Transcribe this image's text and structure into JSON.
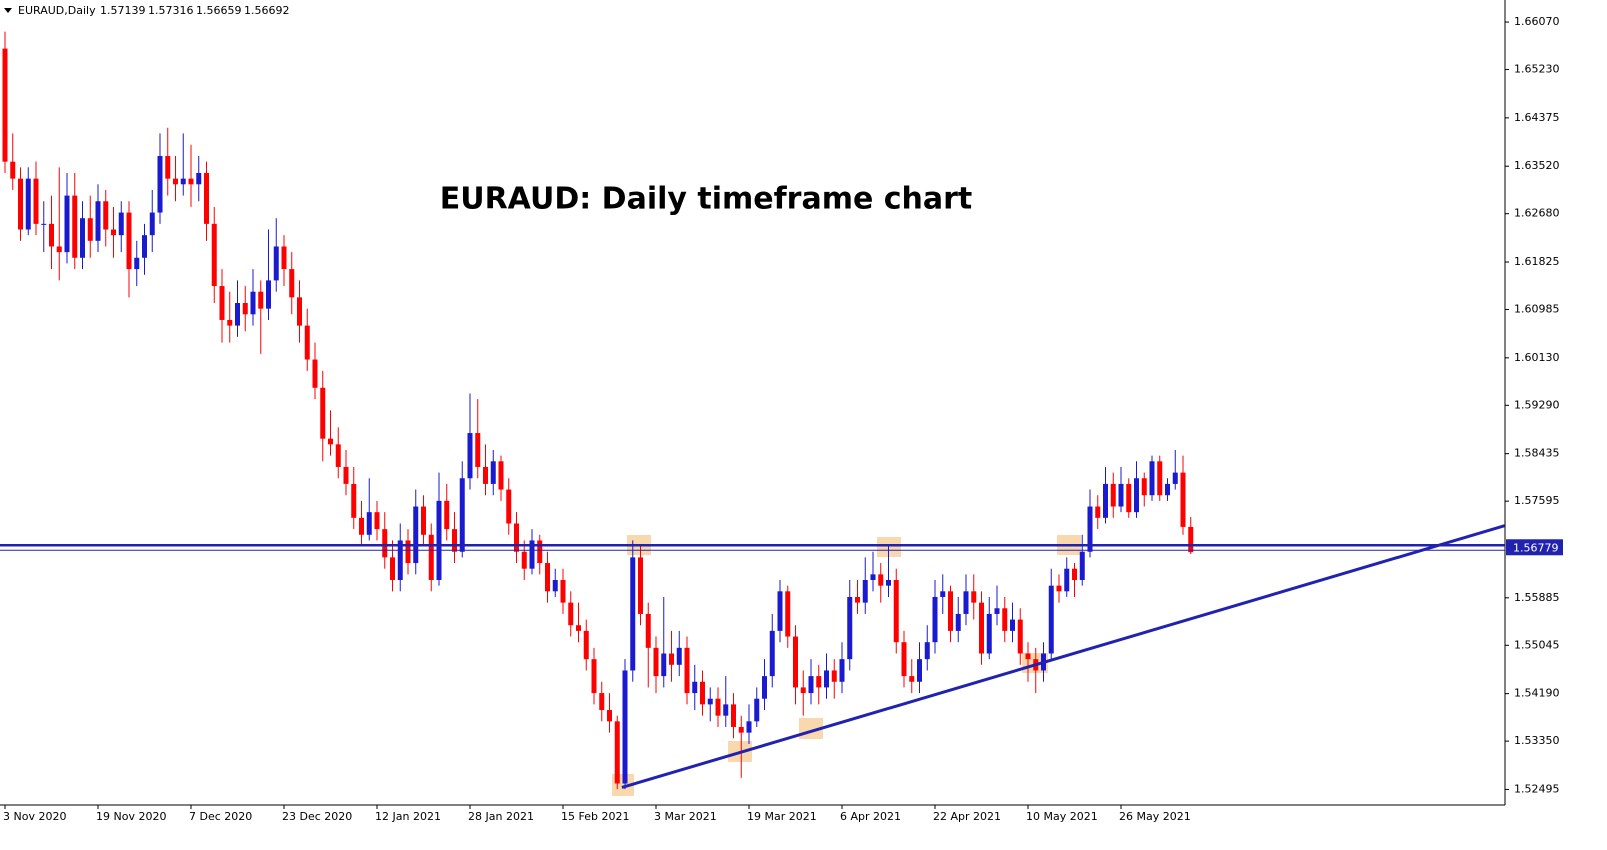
{
  "chart_data": {
    "type": "candlestick",
    "symbol": "EURAUD,Daily",
    "title": "EURAUD: Daily timeframe chart",
    "up_color": "#1a1ad0",
    "down_color": "#ff0000",
    "line_color": "#2222b0",
    "level": 1.56779,
    "trendline": [
      [
        79.6,
        1.5253
      ],
      [
        193.5,
        1.5716
      ]
    ],
    "ylim": [
      1.5222,
      1.6646
    ],
    "yticks": [
      {
        "value": 1.6607,
        "label": "1.66070"
      },
      {
        "value": 1.6523,
        "label": "1.65230"
      },
      1.64375,
      {
        "value": 1.6352,
        "label": "1.63520"
      },
      {
        "value": 1.6268,
        "label": "1.62680"
      },
      1.61825,
      1.60985,
      {
        "value": 1.6013,
        "label": "1.60130"
      },
      {
        "value": 1.5929,
        "label": "1.59290"
      },
      1.58435,
      1.57595,
      1.55885,
      1.55045,
      {
        "value": 1.5419,
        "label": "1.54190"
      },
      {
        "value": 1.5335,
        "label": "1.53350"
      },
      1.52495
    ],
    "categories": [
      "3 Nov 2020",
      null,
      null,
      null,
      null,
      null,
      null,
      null,
      null,
      null,
      null,
      null,
      "19 Nov 2020",
      null,
      null,
      null,
      null,
      null,
      null,
      null,
      null,
      null,
      null,
      null,
      "7 Dec 2020",
      null,
      null,
      null,
      null,
      null,
      null,
      null,
      null,
      null,
      null,
      null,
      "23 Dec 2020",
      null,
      null,
      null,
      null,
      null,
      null,
      null,
      null,
      null,
      null,
      null,
      "12 Jan 2021",
      null,
      null,
      null,
      null,
      null,
      null,
      null,
      null,
      null,
      null,
      null,
      "28 Jan 2021",
      null,
      null,
      null,
      null,
      null,
      null,
      null,
      null,
      null,
      null,
      null,
      "15 Feb 2021",
      null,
      null,
      null,
      null,
      null,
      null,
      null,
      null,
      null,
      null,
      null,
      "3 Mar 2021",
      null,
      null,
      null,
      null,
      null,
      null,
      null,
      null,
      null,
      null,
      null,
      "19 Mar 2021",
      null,
      null,
      null,
      null,
      null,
      null,
      null,
      null,
      null,
      null,
      null,
      "6 Apr 2021",
      null,
      null,
      null,
      null,
      null,
      null,
      null,
      null,
      null,
      null,
      null,
      "22 Apr 2021",
      null,
      null,
      null,
      null,
      null,
      null,
      null,
      null,
      null,
      null,
      null,
      "10 May 2021",
      null,
      null,
      null,
      null,
      null,
      null,
      null,
      null,
      null,
      null,
      null,
      "26 May 2021",
      null,
      null,
      null,
      null,
      null,
      null,
      null,
      null,
      null
    ],
    "ohlc": [
      [
        1.656,
        1.659,
        1.634,
        1.636
      ],
      [
        1.636,
        1.641,
        1.631,
        1.633
      ],
      [
        1.633,
        1.635,
        1.622,
        1.624
      ],
      [
        1.624,
        1.635,
        1.623,
        1.633
      ],
      [
        1.633,
        1.636,
        1.623,
        1.625
      ],
      [
        1.625,
        1.629,
        1.62,
        1.625
      ],
      [
        1.625,
        1.63,
        1.617,
        1.621
      ],
      [
        1.621,
        1.635,
        1.615,
        1.62
      ],
      [
        1.62,
        1.634,
        1.618,
        1.63
      ],
      [
        1.63,
        1.634,
        1.617,
        1.619
      ],
      [
        1.619,
        1.629,
        1.617,
        1.626
      ],
      [
        1.626,
        1.63,
        1.619,
        1.622
      ],
      [
        1.622,
        1.632,
        1.62,
        1.629
      ],
      [
        1.629,
        1.631,
        1.621,
        1.624
      ],
      [
        1.624,
        1.628,
        1.619,
        1.623
      ],
      [
        1.623,
        1.629,
        1.62,
        1.627
      ],
      [
        1.627,
        1.629,
        1.612,
        1.617
      ],
      [
        1.617,
        1.622,
        1.614,
        1.619
      ],
      [
        1.619,
        1.625,
        1.616,
        1.623
      ],
      [
        1.623,
        1.631,
        1.62,
        1.627
      ],
      [
        1.627,
        1.641,
        1.625,
        1.637
      ],
      [
        1.637,
        1.642,
        1.63,
        1.633
      ],
      [
        1.633,
        1.637,
        1.629,
        1.632
      ],
      [
        1.632,
        1.641,
        1.63,
        1.633
      ],
      [
        1.633,
        1.639,
        1.628,
        1.632
      ],
      [
        1.632,
        1.637,
        1.629,
        1.634
      ],
      [
        1.634,
        1.636,
        1.622,
        1.625
      ],
      [
        1.625,
        1.628,
        1.611,
        1.614
      ],
      [
        1.614,
        1.617,
        1.604,
        1.608
      ],
      [
        1.608,
        1.613,
        1.604,
        1.607
      ],
      [
        1.607,
        1.615,
        1.605,
        1.611
      ],
      [
        1.611,
        1.614,
        1.606,
        1.609
      ],
      [
        1.609,
        1.617,
        1.607,
        1.613
      ],
      [
        1.613,
        1.615,
        1.602,
        1.61
      ],
      [
        1.61,
        1.624,
        1.608,
        1.615
      ],
      [
        1.615,
        1.626,
        1.613,
        1.621
      ],
      [
        1.621,
        1.623,
        1.614,
        1.617
      ],
      [
        1.617,
        1.62,
        1.609,
        1.612
      ],
      [
        1.612,
        1.615,
        1.604,
        1.607
      ],
      [
        1.607,
        1.61,
        1.599,
        1.601
      ],
      [
        1.601,
        1.604,
        1.594,
        1.596
      ],
      [
        1.596,
        1.599,
        1.583,
        1.587
      ],
      [
        1.587,
        1.592,
        1.584,
        1.586
      ],
      [
        1.586,
        1.589,
        1.58,
        1.582
      ],
      [
        1.582,
        1.585,
        1.577,
        1.579
      ],
      [
        1.579,
        1.582,
        1.571,
        1.573
      ],
      [
        1.573,
        1.576,
        1.568,
        1.57
      ],
      [
        1.57,
        1.58,
        1.569,
        1.574
      ],
      [
        1.574,
        1.576,
        1.569,
        1.571
      ],
      [
        1.571,
        1.574,
        1.564,
        1.566
      ],
      [
        1.566,
        1.569,
        1.56,
        1.562
      ],
      [
        1.562,
        1.572,
        1.56,
        1.569
      ],
      [
        1.569,
        1.571,
        1.563,
        1.565
      ],
      [
        1.565,
        1.578,
        1.563,
        1.575
      ],
      [
        1.575,
        1.577,
        1.568,
        1.57
      ],
      [
        1.57,
        1.572,
        1.56,
        1.562
      ],
      [
        1.562,
        1.581,
        1.561,
        1.576
      ],
      [
        1.576,
        1.579,
        1.569,
        1.571
      ],
      [
        1.571,
        1.574,
        1.565,
        1.567
      ],
      [
        1.567,
        1.583,
        1.566,
        1.58
      ],
      [
        1.58,
        1.595,
        1.578,
        1.588
      ],
      [
        1.588,
        1.594,
        1.58,
        1.582
      ],
      [
        1.582,
        1.586,
        1.577,
        1.579
      ],
      [
        1.579,
        1.585,
        1.577,
        1.583
      ],
      [
        1.583,
        1.584,
        1.576,
        1.578
      ],
      [
        1.578,
        1.58,
        1.57,
        1.572
      ],
      [
        1.572,
        1.574,
        1.565,
        1.567
      ],
      [
        1.567,
        1.569,
        1.562,
        1.564
      ],
      [
        1.564,
        1.571,
        1.563,
        1.569
      ],
      [
        1.569,
        1.57,
        1.563,
        1.565
      ],
      [
        1.565,
        1.567,
        1.558,
        1.56
      ],
      [
        1.56,
        1.564,
        1.559,
        1.562
      ],
      [
        1.562,
        1.564,
        1.556,
        1.558
      ],
      [
        1.558,
        1.56,
        1.552,
        1.554
      ],
      [
        1.554,
        1.558,
        1.551,
        1.553
      ],
      [
        1.553,
        1.555,
        1.546,
        1.548
      ],
      [
        1.548,
        1.55,
        1.54,
        1.542
      ],
      [
        1.542,
        1.544,
        1.537,
        1.539
      ],
      [
        1.539,
        1.542,
        1.535,
        1.537
      ],
      [
        1.537,
        1.538,
        1.525,
        1.526
      ],
      [
        1.526,
        1.548,
        1.525,
        1.546
      ],
      [
        1.546,
        1.569,
        1.544,
        1.566
      ],
      [
        1.566,
        1.568,
        1.554,
        1.556
      ],
      [
        1.556,
        1.558,
        1.543,
        1.55
      ],
      [
        1.55,
        1.552,
        1.542,
        1.545
      ],
      [
        1.545,
        1.559,
        1.543,
        1.549
      ],
      [
        1.549,
        1.553,
        1.544,
        1.547
      ],
      [
        1.547,
        1.553,
        1.545,
        1.55
      ],
      [
        1.55,
        1.552,
        1.54,
        1.542
      ],
      [
        1.542,
        1.547,
        1.539,
        1.544
      ],
      [
        1.544,
        1.546,
        1.538,
        1.54
      ],
      [
        1.54,
        1.543,
        1.537,
        1.541
      ],
      [
        1.541,
        1.543,
        1.536,
        1.538
      ],
      [
        1.538,
        1.545,
        1.536,
        1.54
      ],
      [
        1.54,
        1.542,
        1.534,
        1.536
      ],
      [
        1.536,
        1.538,
        1.527,
        1.535
      ],
      [
        1.535,
        1.54,
        1.533,
        1.537
      ],
      [
        1.537,
        1.543,
        1.536,
        1.541
      ],
      [
        1.541,
        1.548,
        1.539,
        1.545
      ],
      [
        1.545,
        1.556,
        1.543,
        1.553
      ],
      [
        1.553,
        1.562,
        1.551,
        1.56
      ],
      [
        1.56,
        1.561,
        1.55,
        1.552
      ],
      [
        1.552,
        1.554,
        1.54,
        1.543
      ],
      [
        1.543,
        1.546,
        1.538,
        1.542
      ],
      [
        1.542,
        1.548,
        1.54,
        1.545
      ],
      [
        1.545,
        1.547,
        1.54,
        1.543
      ],
      [
        1.543,
        1.549,
        1.541,
        1.546
      ],
      [
        1.546,
        1.548,
        1.541,
        1.544
      ],
      [
        1.544,
        1.551,
        1.542,
        1.548
      ],
      [
        1.548,
        1.562,
        1.546,
        1.559
      ],
      [
        1.559,
        1.562,
        1.556,
        1.558
      ],
      [
        1.558,
        1.566,
        1.556,
        1.562
      ],
      [
        1.562,
        1.567,
        1.56,
        1.563
      ],
      [
        1.563,
        1.565,
        1.558,
        1.561
      ],
      [
        1.561,
        1.568,
        1.559,
        1.562
      ],
      [
        1.562,
        1.564,
        1.549,
        1.551
      ],
      [
        1.551,
        1.553,
        1.543,
        1.545
      ],
      [
        1.545,
        1.548,
        1.542,
        1.544
      ],
      [
        1.544,
        1.551,
        1.542,
        1.548
      ],
      [
        1.548,
        1.554,
        1.546,
        1.551
      ],
      [
        1.551,
        1.562,
        1.549,
        1.559
      ],
      [
        1.559,
        1.563,
        1.556,
        1.56
      ],
      [
        1.56,
        1.561,
        1.551,
        1.553
      ],
      [
        1.553,
        1.559,
        1.551,
        1.556
      ],
      [
        1.556,
        1.563,
        1.554,
        1.56
      ],
      [
        1.56,
        1.563,
        1.555,
        1.558
      ],
      [
        1.558,
        1.56,
        1.547,
        1.549
      ],
      [
        1.549,
        1.559,
        1.548,
        1.556
      ],
      [
        1.556,
        1.561,
        1.554,
        1.557
      ],
      [
        1.557,
        1.559,
        1.551,
        1.553
      ],
      [
        1.553,
        1.558,
        1.551,
        1.555
      ],
      [
        1.555,
        1.557,
        1.547,
        1.549
      ],
      [
        1.549,
        1.551,
        1.544,
        1.548
      ],
      [
        1.548,
        1.55,
        1.542,
        1.546
      ],
      [
        1.546,
        1.551,
        1.544,
        1.549
      ],
      [
        1.549,
        1.564,
        1.548,
        1.561
      ],
      [
        1.561,
        1.563,
        1.558,
        1.56
      ],
      [
        1.56,
        1.566,
        1.559,
        1.564
      ],
      [
        1.564,
        1.565,
        1.559,
        1.562
      ],
      [
        1.562,
        1.57,
        1.561,
        1.567
      ],
      [
        1.567,
        1.578,
        1.566,
        1.575
      ],
      [
        1.575,
        1.577,
        1.571,
        1.573
      ],
      [
        1.573,
        1.582,
        1.572,
        1.579
      ],
      [
        1.579,
        1.581,
        1.573,
        1.575
      ],
      [
        1.575,
        1.582,
        1.574,
        1.579
      ],
      [
        1.579,
        1.58,
        1.573,
        1.574
      ],
      [
        1.574,
        1.583,
        1.573,
        1.58
      ],
      [
        1.58,
        1.581,
        1.575,
        1.577
      ],
      [
        1.577,
        1.584,
        1.576,
        1.583
      ],
      [
        1.583,
        1.584,
        1.576,
        1.577
      ],
      [
        1.577,
        1.58,
        1.576,
        1.579
      ],
      [
        1.579,
        1.585,
        1.578,
        1.581
      ],
      [
        1.581,
        1.584,
        1.57,
        1.57139
      ],
      [
        1.57139,
        1.57316,
        1.56659,
        1.56692
      ]
    ]
  }
}
